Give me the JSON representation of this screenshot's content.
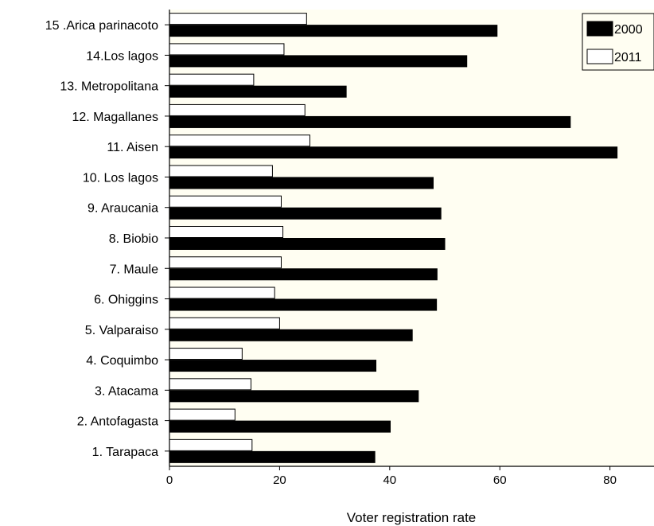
{
  "chart_data": {
    "type": "bar",
    "orientation": "horizontal",
    "xlabel": "Voter registration rate",
    "ylabel": "",
    "xlim": [
      0,
      88
    ],
    "xticks": [
      0,
      20,
      40,
      60,
      80
    ],
    "grid": false,
    "background": "#fffef2",
    "legend_position": "top-right",
    "categories": [
      "1. Tarapaca",
      "2. Antofagasta",
      "3. Atacama",
      "4. Coquimbo",
      "5. Valparaiso",
      "6. Ohiggins",
      "7. Maule",
      "8. Biobio",
      "9. Araucania",
      "10. Los lagos",
      "11. Aisen",
      "12. Magallanes",
      "13. Metropolitana",
      "14.Los lagos",
      "15 .Arica parinacoto"
    ],
    "series": [
      {
        "name": "2000",
        "color": "#000000",
        "values": [
          37.3,
          40.1,
          45.2,
          37.5,
          44.1,
          48.5,
          48.6,
          50.0,
          49.3,
          47.9,
          81.3,
          72.8,
          32.1,
          54.0,
          59.5
        ]
      },
      {
        "name": "2011",
        "color": "#ffffff",
        "values": [
          15.0,
          11.9,
          14.8,
          13.2,
          20.0,
          19.1,
          20.3,
          20.6,
          20.3,
          18.7,
          25.5,
          24.6,
          15.3,
          20.8,
          24.9
        ]
      }
    ]
  }
}
